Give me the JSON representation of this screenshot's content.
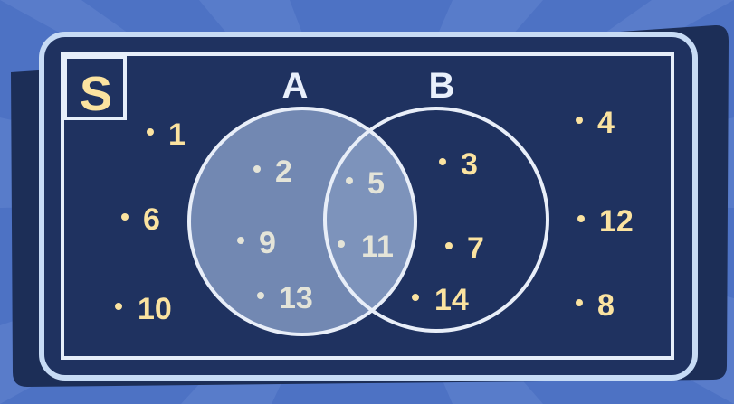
{
  "universal_label": "S",
  "set_a_label": "A",
  "set_b_label": "B",
  "outside": [
    "1",
    "6",
    "10",
    "4",
    "12",
    "8"
  ],
  "only_a": [
    "2",
    "9",
    "13"
  ],
  "intersection": [
    "5",
    "11"
  ],
  "only_b": [
    "3",
    "7",
    "14"
  ],
  "colors": {
    "background": "#4d72c4",
    "panel": "#1f3260",
    "frame": "#c7dbf5",
    "number_gold": "#fbe3a0",
    "number_inside": "#e4e4d8",
    "set_label": "#e9f0fb",
    "universal_label": "#fbe3a0"
  }
}
